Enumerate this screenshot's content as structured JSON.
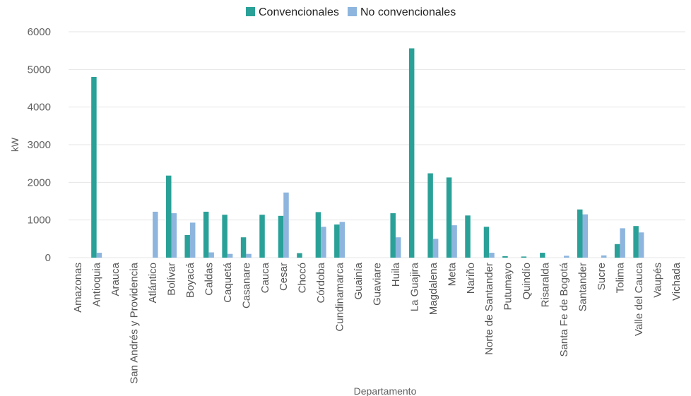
{
  "chart_data": {
    "type": "bar",
    "xlabel": "Departamento",
    "ylabel": "kW",
    "ylim": [
      0,
      6000
    ],
    "yticks": [
      0,
      1000,
      2000,
      3000,
      4000,
      5000,
      6000
    ],
    "grid": true,
    "legend_position": "top-center",
    "categories": [
      "Amazonas",
      "Antioquia",
      "Arauca",
      "San Andrés y Providencia",
      "Atlántico",
      "Bolívar",
      "Boyacá",
      "Caldas",
      "Caquetá",
      "Casanare",
      "Cauca",
      "Cesar",
      "Chocó",
      "Córdoba",
      "Cundinamarca",
      "Guainía",
      "Guaviare",
      "Huila",
      "La Guajira",
      "Magdalena",
      "Meta",
      "Nariño",
      "Norte de Santander",
      "Putumayo",
      "Quindío",
      "Risaralda",
      "Santa Fe de Bogotá",
      "Santander",
      "Sucre",
      "Tolima",
      "Valle del Cauca",
      "Vaupés",
      "Vichada"
    ],
    "series": [
      {
        "name": "Convencionales",
        "color": "#2aa198",
        "values": [
          0,
          4800,
          0,
          0,
          0,
          2180,
          600,
          1220,
          1140,
          540,
          1140,
          1110,
          120,
          1210,
          880,
          0,
          0,
          1180,
          5560,
          2240,
          2130,
          1120,
          820,
          40,
          30,
          130,
          0,
          1280,
          0,
          360,
          840,
          0,
          0
        ]
      },
      {
        "name": "No convencionales",
        "color": "#8db5de",
        "values": [
          0,
          130,
          0,
          0,
          1220,
          1180,
          930,
          140,
          100,
          100,
          0,
          1730,
          0,
          820,
          950,
          0,
          0,
          540,
          0,
          500,
          860,
          0,
          130,
          0,
          0,
          0,
          50,
          1150,
          60,
          780,
          670,
          0,
          0
        ]
      }
    ]
  }
}
